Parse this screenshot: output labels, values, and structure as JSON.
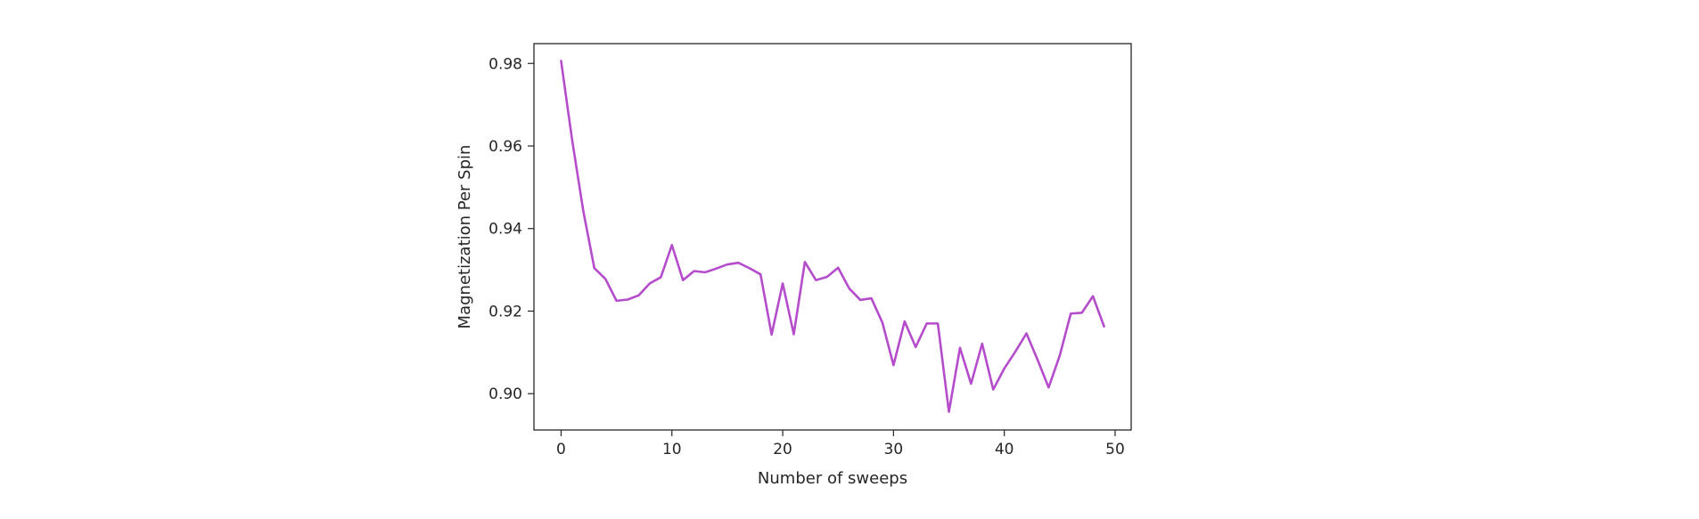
{
  "chart_data": {
    "type": "line",
    "title": "",
    "xlabel": "Number of sweeps",
    "ylabel": "Magnetization Per Spin",
    "xlim": [
      -2.45,
      51.45
    ],
    "ylim": [
      0.8912,
      0.9848
    ],
    "xticks": [
      0,
      10,
      20,
      30,
      40,
      50
    ],
    "yticks": [
      0.9,
      0.92,
      0.94,
      0.96,
      0.98
    ],
    "xtick_labels": [
      "0",
      "10",
      "20",
      "30",
      "40",
      "50"
    ],
    "ytick_labels": [
      "0.90",
      "0.92",
      "0.94",
      "0.96",
      "0.98"
    ],
    "grid": false,
    "line_color": "#b44ccb",
    "series": [
      {
        "x": [
          0,
          1,
          2,
          3,
          4,
          5,
          6,
          7,
          8,
          9,
          10,
          11,
          12,
          13,
          14,
          15,
          16,
          17,
          18,
          19,
          20,
          21,
          22,
          23,
          24,
          25,
          26,
          27,
          28,
          29,
          30,
          31,
          32,
          33,
          34,
          35,
          36,
          37,
          38,
          39,
          40,
          41,
          42,
          43,
          44,
          45,
          46,
          47,
          48,
          49
        ],
        "values": [
          0.9806,
          0.9614,
          0.9443,
          0.9304,
          0.9278,
          0.9225,
          0.9228,
          0.9238,
          0.9267,
          0.9282,
          0.936,
          0.9275,
          0.9297,
          0.9294,
          0.9303,
          0.9313,
          0.9317,
          0.9304,
          0.9289,
          0.9143,
          0.9267,
          0.9144,
          0.9319,
          0.9275,
          0.9283,
          0.9305,
          0.9255,
          0.9227,
          0.9231,
          0.9172,
          0.9069,
          0.9175,
          0.9113,
          0.917,
          0.917,
          0.8956,
          0.9111,
          0.9024,
          0.9121,
          0.901,
          0.9061,
          0.9102,
          0.9146,
          0.9082,
          0.9015,
          0.9092,
          0.9194,
          0.9196,
          0.9236,
          0.9163
        ]
      }
    ]
  }
}
